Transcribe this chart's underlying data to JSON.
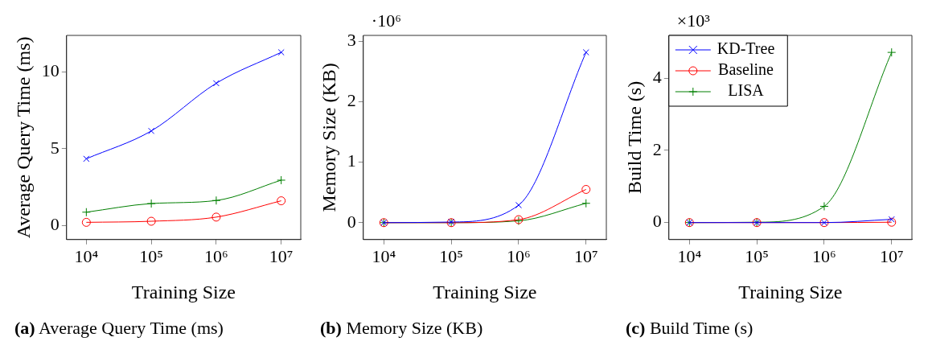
{
  "chart_data": [
    {
      "type": "line",
      "title": "(a) Average Query Time (ms)",
      "xlabel": "Training Size",
      "ylabel": "Average Query Time (ms)",
      "log": "x",
      "x": [
        10000,
        100000,
        1000000,
        10000000
      ],
      "xlim": [
        4966,
        20000000
      ],
      "xticks": [
        {
          "value": 10000,
          "label": "10⁴"
        },
        {
          "value": 100000,
          "label": "10⁵"
        },
        {
          "value": 1000000,
          "label": "10⁶"
        },
        {
          "value": 10000000,
          "label": "10⁷"
        }
      ],
      "ylim": [
        -0.9,
        12.37
      ],
      "yticks": [
        0,
        5,
        10
      ],
      "grid": false,
      "legend": false,
      "series": [
        {
          "color": "#0000ff",
          "marker": "cross",
          "values": [
            4.35,
            6.16,
            9.26,
            11.27
          ]
        },
        {
          "color": "#ff0000",
          "marker": "circle",
          "values": [
            0.22,
            0.29,
            0.56,
            1.62
          ]
        },
        {
          "color": "#007f00",
          "marker": "plus",
          "values": [
            0.88,
            1.44,
            1.64,
            2.96
          ]
        }
      ]
    },
    {
      "type": "line",
      "title": "(b) Memory Size (KB)",
      "xlabel": "Training Size",
      "ylabel": "Memory Size (KB)",
      "log": "x",
      "annotations": [
        "·10⁶"
      ],
      "x": [
        10000,
        100000,
        1000000,
        10000000
      ],
      "xlim": [
        4966,
        20000000
      ],
      "xticks": [
        {
          "value": 10000,
          "label": "10⁴"
        },
        {
          "value": 100000,
          "label": "10⁵"
        },
        {
          "value": 1000000,
          "label": "10⁶"
        },
        {
          "value": 10000000,
          "label": "10⁷"
        }
      ],
      "ylim": [
        -0.28,
        3.1
      ],
      "yticks": [
        0,
        1,
        2,
        3
      ],
      "grid": false,
      "legend": false,
      "series": [
        {
          "color": "#0000ff",
          "marker": "cross",
          "values": [
            0,
            0.01,
            0.29,
            2.82
          ]
        },
        {
          "color": "#ff0000",
          "marker": "circle",
          "values": [
            0,
            0,
            0.05,
            0.55
          ]
        },
        {
          "color": "#007f00",
          "marker": "plus",
          "values": [
            0,
            0,
            0.03,
            0.32
          ]
        }
      ]
    },
    {
      "type": "line",
      "title": "(c) Build Time (s)",
      "xlabel": "Training Size",
      "ylabel": "Build Time (s)",
      "log": "x",
      "annotations": [
        "×10³"
      ],
      "x": [
        10000,
        100000,
        1000000,
        10000000
      ],
      "xlim": [
        4966,
        20000000
      ],
      "xticks": [
        {
          "value": 10000,
          "label": "10⁴"
        },
        {
          "value": 100000,
          "label": "10⁵"
        },
        {
          "value": 1000000,
          "label": "10⁶"
        },
        {
          "value": 10000000,
          "label": "10⁷"
        }
      ],
      "ylim": [
        -0.47,
        5.18
      ],
      "yticks": [
        0,
        2,
        4
      ],
      "grid": false,
      "legend": "top left",
      "series": [
        {
          "name": "KD-Tree",
          "color": "#0000ff",
          "marker": "cross",
          "values": [
            0,
            0,
            0,
            0.09
          ]
        },
        {
          "name": "Baseline",
          "color": "#ff0000",
          "marker": "circle",
          "values": [
            0,
            0,
            0,
            0.01
          ]
        },
        {
          "name": "LISA",
          "color": "#007f00",
          "marker": "plus",
          "values": [
            0,
            0.01,
            0.45,
            4.71
          ]
        }
      ]
    }
  ]
}
